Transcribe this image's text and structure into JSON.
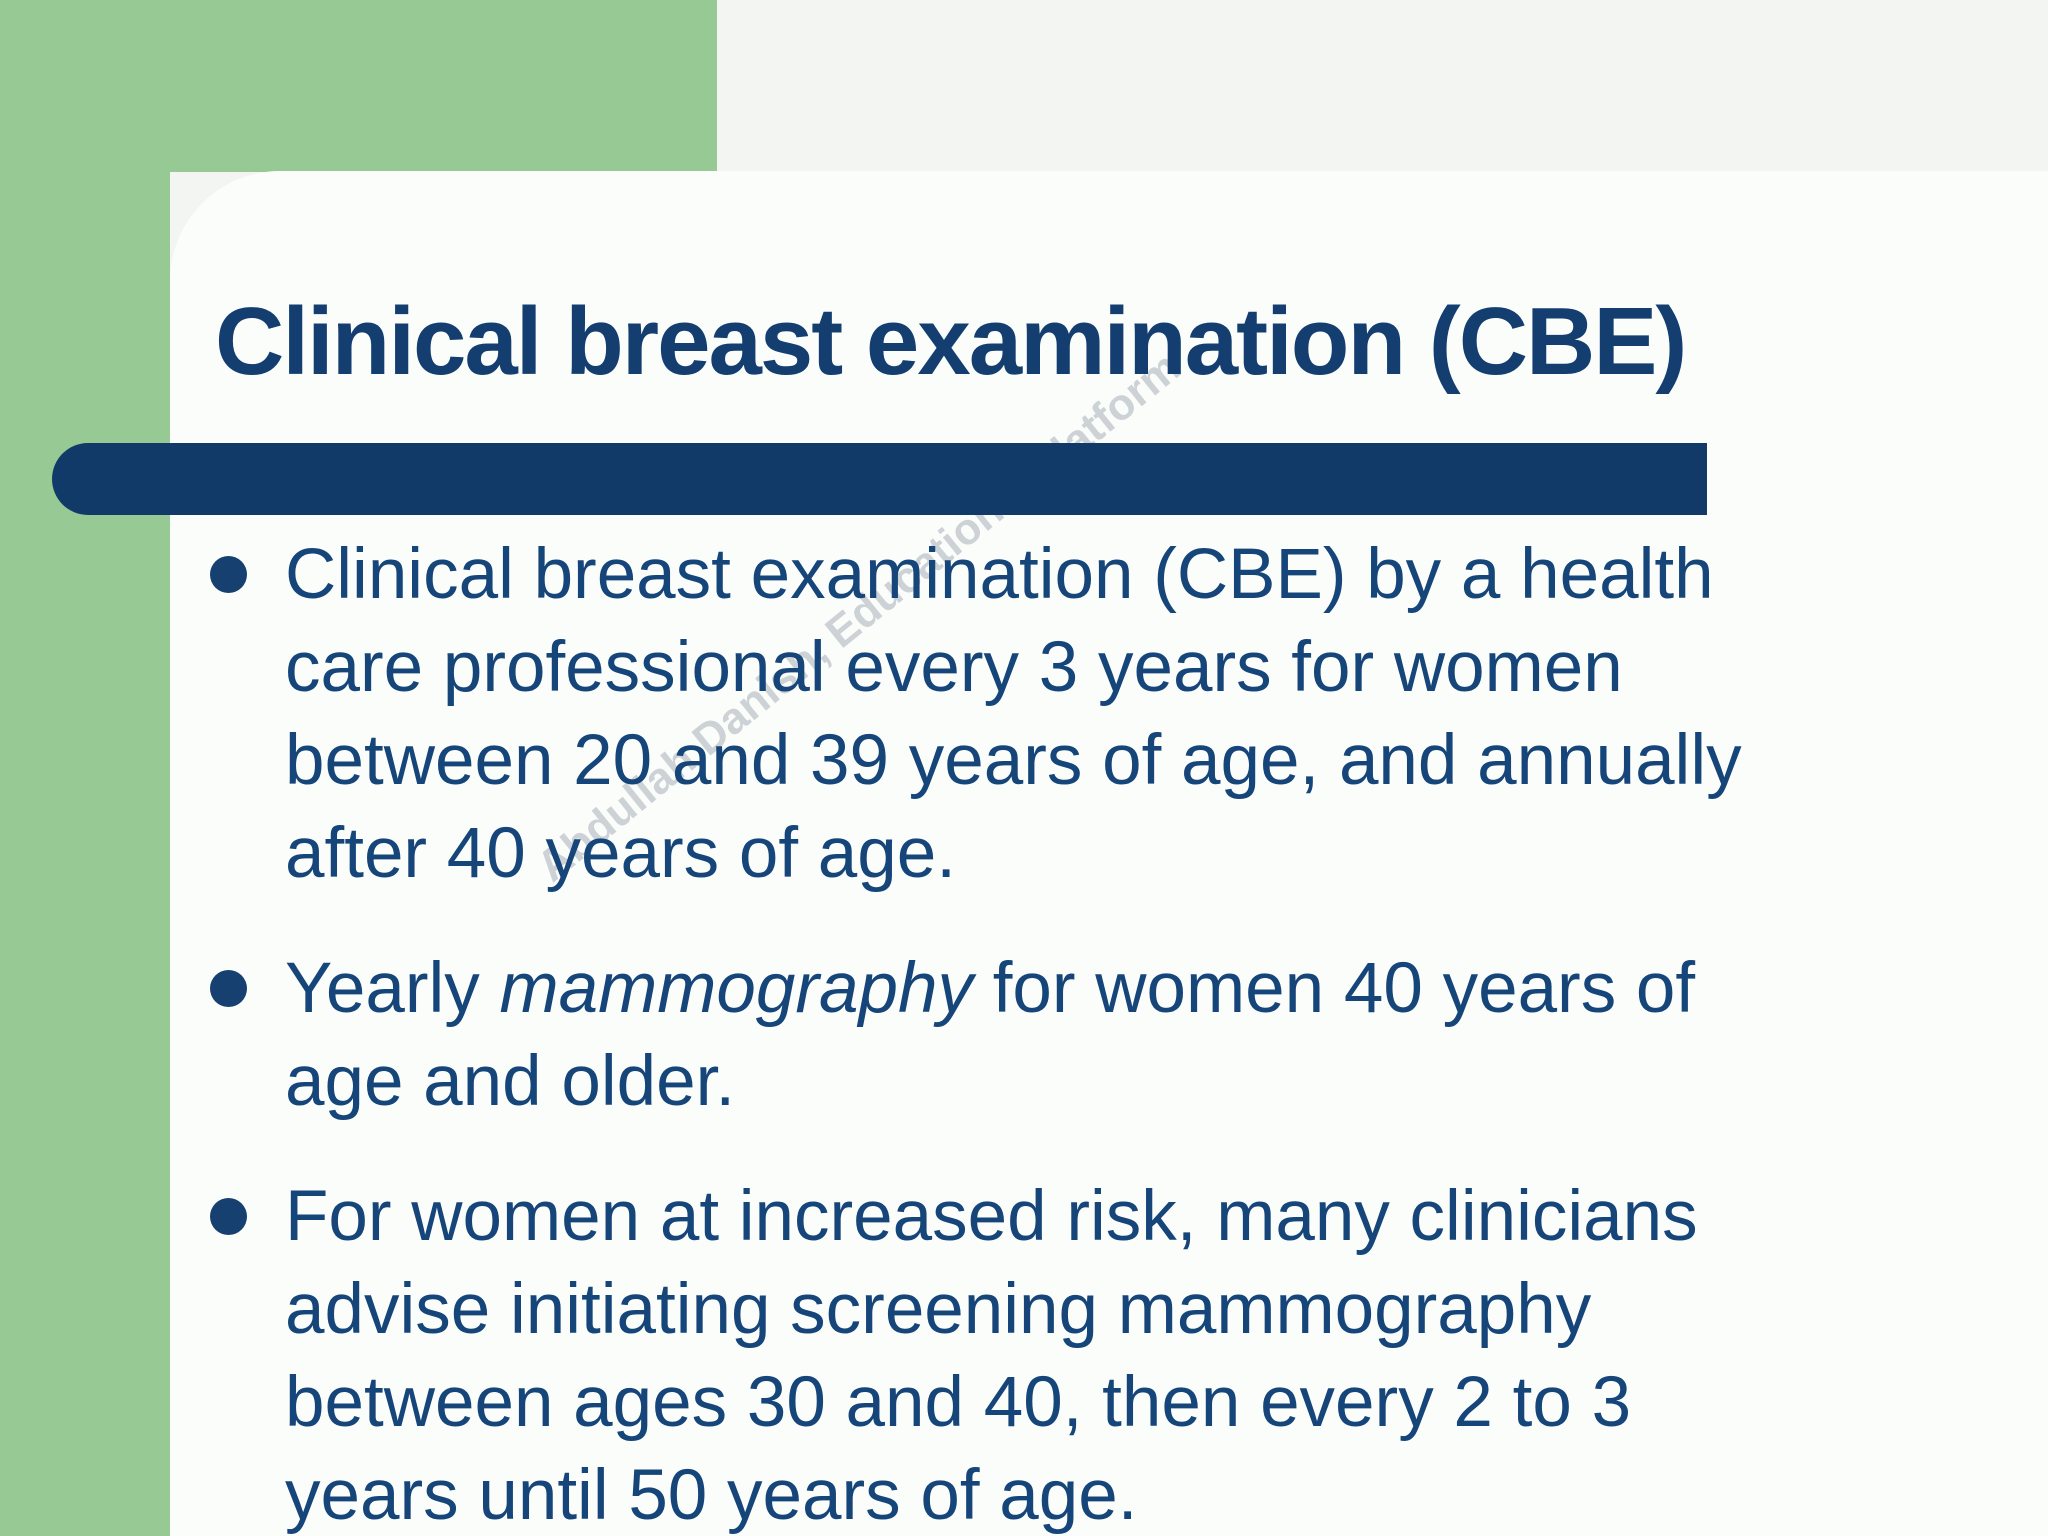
{
  "slide": {
    "title": "Clinical breast examination (CBE)",
    "bullets": [
      {
        "prefix": "Clinical breast examination (CBE) by a health\ncare professional every 3 years for women\nbetween 20 and 39 years of age, and annually\nafter 40 years of age.",
        "italic": "",
        "suffix": ""
      },
      {
        "prefix": "Yearly ",
        "italic": "mammography",
        "suffix": " for women 40 years of\nage and older."
      },
      {
        "prefix": "For women at increased risk, many clinicians\nadvise initiating screening mammography\nbetween ages 30 and 40, then every 2 to 3\nyears until 50 years of age.",
        "italic": "",
        "suffix": ""
      }
    ],
    "watermark": "Abdullah Danish, Educational Platform",
    "colors": {
      "green_accent": "#97c995",
      "navy_bar": "#123a69",
      "navy_text": "#16457a",
      "card_background": "#fbfdfb",
      "page_background": "#f2f5f2",
      "watermark_gray": "#9fa9b0"
    }
  }
}
